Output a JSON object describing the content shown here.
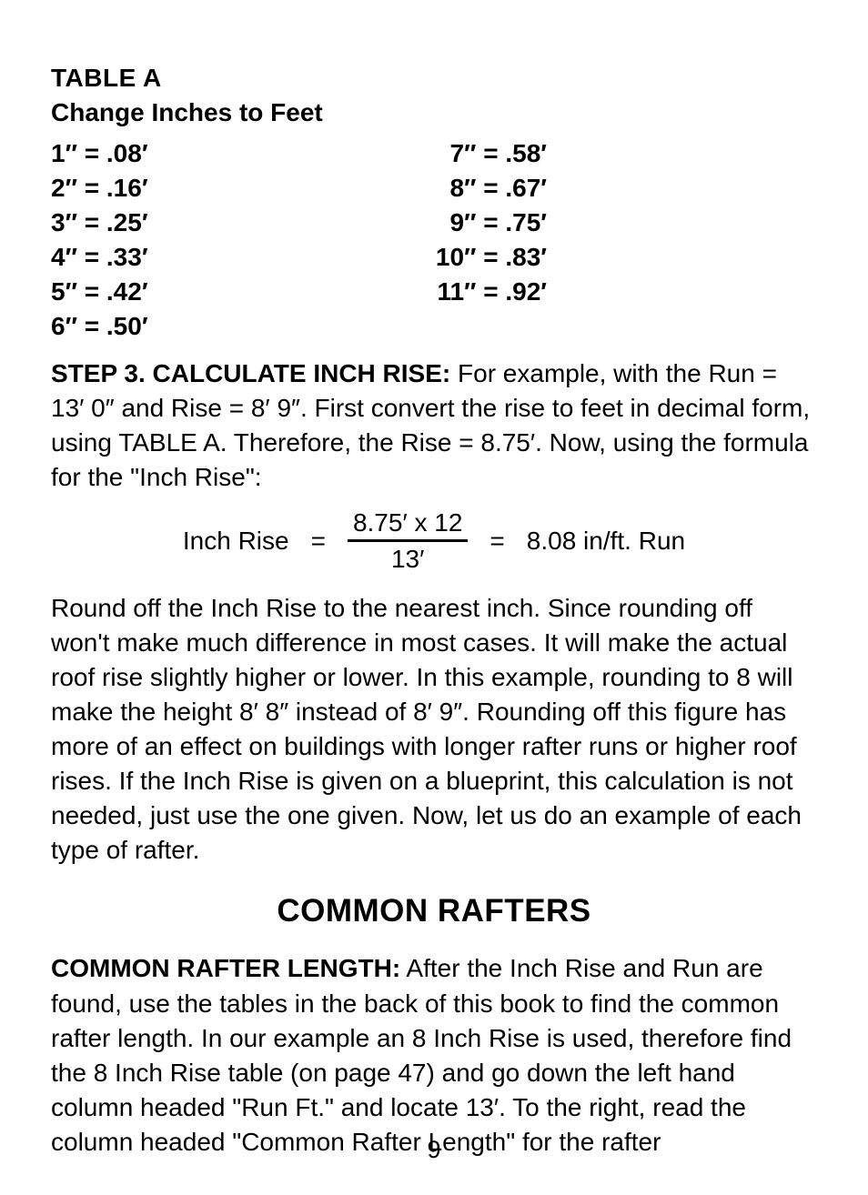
{
  "tableA": {
    "title": "TABLE A",
    "subtitle": "Change Inches to Feet",
    "left": [
      "1″ = .08′",
      "2″ = .16′",
      "3″ = .25′",
      "4″ = .33′",
      "5″ = .42′",
      "6″ = .50′"
    ],
    "right": [
      "7″ = .58′",
      "8″ = .67′",
      "9″ = .75′",
      "10″ = .83′",
      "11″ = .92′"
    ]
  },
  "step3": {
    "label": "STEP 3.  CALCULATE INCH RISE:",
    "text": " For example, with the Run = 13′ 0″ and Rise = 8′ 9″. First convert the rise to feet in decimal form, using TABLE A. Therefore, the Rise = 8.75′. Now, using the formula for the \"Inch Rise\":"
  },
  "formula": {
    "label": "Inch Rise",
    "eq1": "=",
    "numerator": "8.75′ x 12",
    "denominator": "13′",
    "eq2": "=",
    "result": "8.08 in/ft. Run"
  },
  "paragraph1": "Round off the Inch Rise to the nearest inch. Since rounding off won't make much difference in most cases. It will make the actual roof rise slightly higher or lower. In this example, rounding to 8 will make the height 8′ 8″ instead of 8′ 9″. Rounding off this figure has more of an effect on buildings with longer rafter runs or higher roof rises. If the Inch Rise is given on a blueprint, this calculation is not needed, just use the one given. Now, let us do an example of each type of rafter.",
  "sectionHeading": "COMMON RAFTERS",
  "commonRafter": {
    "label": "COMMON RAFTER LENGTH:",
    "text": " After the Inch Rise and Run are found, use the tables in the back of this book to find the common rafter length. In our example an 8 Inch Rise is used, therefore find the 8 Inch Rise table (on page 47) and go down the left hand column headed \"Run Ft.\" and locate 13′. To the right, read the column headed \"Common Rafter Length\" for the rafter"
  },
  "pageNumber": "9"
}
